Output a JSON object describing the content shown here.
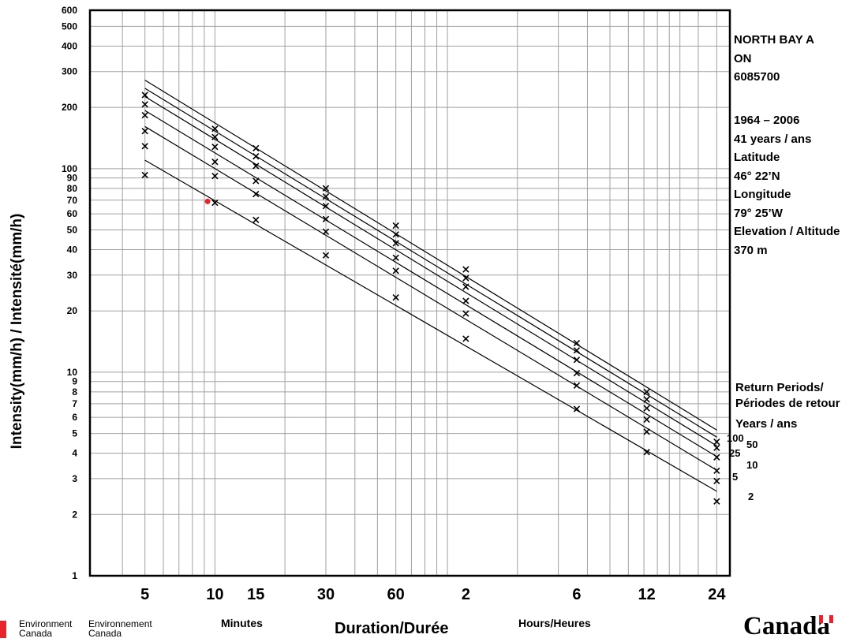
{
  "chart_data": {
    "type": "line",
    "y_scale": "log",
    "x_scale": "log",
    "xlabel": "Duration/Durée",
    "ylabel": "Intensity(mm/h) / Intensité(mm/h)",
    "x_unit_labels": {
      "minutes": "Minutes",
      "hours": "Hours/Heures"
    },
    "x_ticks": [
      {
        "label": "5",
        "minutes": 5
      },
      {
        "label": "10",
        "minutes": 10
      },
      {
        "label": "15",
        "minutes": 15
      },
      {
        "label": "30",
        "minutes": 30
      },
      {
        "label": "60",
        "minutes": 60
      },
      {
        "label": "2",
        "minutes": 120
      },
      {
        "label": "6",
        "minutes": 360
      },
      {
        "label": "12",
        "minutes": 720
      },
      {
        "label": "24",
        "minutes": 1440
      }
    ],
    "xlim_minutes": [
      2.9,
      1640
    ],
    "ylim": [
      1,
      600
    ],
    "y_ticks": [
      {
        "label": "1",
        "value": 1
      },
      {
        "label": "2",
        "value": 2
      },
      {
        "label": "3",
        "value": 3
      },
      {
        "label": "4",
        "value": 4
      },
      {
        "label": "5",
        "value": 5
      },
      {
        "label": "6",
        "value": 6
      },
      {
        "label": "7",
        "value": 7
      },
      {
        "label": "8",
        "value": 8
      },
      {
        "label": "9",
        "value": 9
      },
      {
        "label": "10",
        "value": 10
      },
      {
        "label": "20",
        "value": 20
      },
      {
        "label": "30",
        "value": 30
      },
      {
        "label": "40",
        "value": 40
      },
      {
        "label": "50",
        "value": 50
      },
      {
        "label": "60",
        "value": 60
      },
      {
        "label": "70",
        "value": 70
      },
      {
        "label": "80",
        "value": 80
      },
      {
        "label": "90",
        "value": 90
      },
      {
        "label": "100",
        "value": 100
      },
      {
        "label": "200",
        "value": 200
      },
      {
        "label": "300",
        "value": 300
      },
      {
        "label": "400",
        "value": 400
      },
      {
        "label": "500",
        "value": 500
      },
      {
        "label": "600",
        "value": 600
      }
    ],
    "grid": true,
    "point_minutes": [
      5,
      10,
      15,
      30,
      60,
      120,
      360,
      720,
      1440
    ],
    "series": [
      {
        "name": "2",
        "line_start": 110,
        "line_end": 2.6,
        "points": [
          93,
          68,
          56,
          37.5,
          23.3,
          14.6,
          6.6,
          4.05,
          2.32
        ]
      },
      {
        "name": "5",
        "line_start": 161,
        "line_end": 3.3,
        "points": [
          129,
          92,
          75,
          49,
          31.5,
          19.4,
          8.6,
          5.1,
          2.92
        ]
      },
      {
        "name": "10",
        "line_start": 193,
        "line_end": 3.85,
        "points": [
          153,
          108,
          87,
          56.5,
          36.5,
          22.4,
          9.9,
          5.85,
          3.28
        ]
      },
      {
        "name": "25",
        "line_start": 226,
        "line_end": 4.35,
        "points": [
          183,
          128,
          103,
          65.5,
          43,
          26.3,
          11.5,
          6.65,
          3.82
        ]
      },
      {
        "name": "50",
        "line_start": 248,
        "line_end": 4.8,
        "points": [
          207,
          143,
          115,
          73,
          47.5,
          29,
          12.8,
          7.35,
          4.25
        ]
      },
      {
        "name": "100",
        "line_start": 272,
        "line_end": 5.2,
        "points": [
          230,
          157,
          126,
          80,
          52.5,
          32,
          13.9,
          8.0,
          4.55
        ]
      }
    ],
    "highlight_point": {
      "minutes": 9.3,
      "value": 69,
      "color": "#e8242b"
    },
    "return_period_labels": [
      "100",
      "50",
      "25",
      "10",
      "5",
      "2"
    ]
  },
  "station": {
    "name": "NORTH BAY A",
    "province": "ON",
    "id": "6085700",
    "period": "1964 – 2006",
    "years": "41 years / ans",
    "lat_label": "Latitude",
    "lat_value": "46°  22’N",
    "lon_label": "Longitude",
    "lon_value": "79° 25’W",
    "elev_label": "Elevation / Altitude",
    "elev_value": "370 m"
  },
  "legend": {
    "line1": "Return Periods/",
    "line2": "Périodes de retour",
    "line3": "Years / ans"
  },
  "footer": {
    "dept_en_1": "Environment",
    "dept_en_2": "Canada",
    "dept_fr_1": "Environnement",
    "dept_fr_2": "Canada",
    "wordmark": "Canadä"
  },
  "colors": {
    "flag_red": "#e8242b",
    "highlight": "#e8242b",
    "grid": "#a0a0a0"
  }
}
